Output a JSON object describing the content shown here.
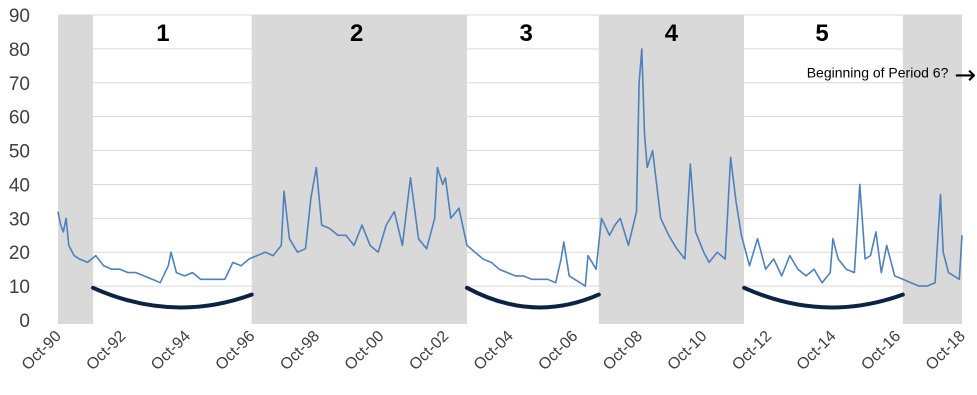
{
  "chart_data": {
    "type": "line",
    "series_color": "#4f81bd",
    "shade_color": "#d9d9d9",
    "curve_color": "#0d2345",
    "ylim": [
      0,
      90
    ],
    "yticks": [
      "0",
      "10",
      "20",
      "30",
      "40",
      "50",
      "60",
      "70",
      "80",
      "90"
    ],
    "xlim": [
      "1990-10",
      "2018-10"
    ],
    "xticks": [
      "Oct-90",
      "Oct-92",
      "Oct-94",
      "Oct-96",
      "Oct-98",
      "Oct-00",
      "Oct-02",
      "Oct-04",
      "Oct-06",
      "Oct-08",
      "Oct-10",
      "Oct-12",
      "Oct-14",
      "Oct-16",
      "Oct-18"
    ],
    "shaded_periods": [
      {
        "start": "1990-10",
        "end": "1991-11"
      },
      {
        "start": "1996-10",
        "end": "2003-06"
      },
      {
        "start": "2007-07",
        "end": "2012-01"
      },
      {
        "start": "2016-12",
        "end": "2018-10"
      }
    ],
    "period_labels": [
      {
        "text": "1",
        "x": "1994-01"
      },
      {
        "text": "2",
        "x": "2000-01"
      },
      {
        "text": "3",
        "x": "2005-04"
      },
      {
        "text": "4",
        "x": "2009-10"
      },
      {
        "text": "5",
        "x": "2014-06"
      }
    ],
    "annotation": {
      "text": "Beginning of Period 6?",
      "x": "2015-06",
      "y": 73,
      "arrow": "→"
    },
    "trough_curves": [
      {
        "start": "1991-11",
        "end": "1996-10"
      },
      {
        "start": "2003-06",
        "end": "2007-07"
      },
      {
        "start": "2012-01",
        "end": "2016-12"
      }
    ],
    "values": [
      {
        "x": "1990-10",
        "y": 32
      },
      {
        "x": "1990-11",
        "y": 28
      },
      {
        "x": "1990-12",
        "y": 26
      },
      {
        "x": "1991-01",
        "y": 30
      },
      {
        "x": "1991-02",
        "y": 22
      },
      {
        "x": "1991-04",
        "y": 19
      },
      {
        "x": "1991-06",
        "y": 18
      },
      {
        "x": "1991-09",
        "y": 17
      },
      {
        "x": "1991-12",
        "y": 19
      },
      {
        "x": "1992-03",
        "y": 16
      },
      {
        "x": "1992-06",
        "y": 15
      },
      {
        "x": "1992-09",
        "y": 15
      },
      {
        "x": "1992-12",
        "y": 14
      },
      {
        "x": "1993-03",
        "y": 14
      },
      {
        "x": "1993-06",
        "y": 13
      },
      {
        "x": "1993-09",
        "y": 12
      },
      {
        "x": "1993-12",
        "y": 11
      },
      {
        "x": "1994-03",
        "y": 16
      },
      {
        "x": "1994-04",
        "y": 20
      },
      {
        "x": "1994-06",
        "y": 14
      },
      {
        "x": "1994-09",
        "y": 13
      },
      {
        "x": "1994-12",
        "y": 14
      },
      {
        "x": "1995-03",
        "y": 12
      },
      {
        "x": "1995-06",
        "y": 12
      },
      {
        "x": "1995-09",
        "y": 12
      },
      {
        "x": "1995-12",
        "y": 12
      },
      {
        "x": "1996-03",
        "y": 17
      },
      {
        "x": "1996-06",
        "y": 16
      },
      {
        "x": "1996-09",
        "y": 18
      },
      {
        "x": "1996-12",
        "y": 19
      },
      {
        "x": "1997-03",
        "y": 20
      },
      {
        "x": "1997-06",
        "y": 19
      },
      {
        "x": "1997-09",
        "y": 22
      },
      {
        "x": "1997-10",
        "y": 38
      },
      {
        "x": "1997-12",
        "y": 24
      },
      {
        "x": "1998-03",
        "y": 20
      },
      {
        "x": "1998-06",
        "y": 21
      },
      {
        "x": "1998-08",
        "y": 36
      },
      {
        "x": "1998-10",
        "y": 45
      },
      {
        "x": "1998-12",
        "y": 28
      },
      {
        "x": "1999-03",
        "y": 27
      },
      {
        "x": "1999-06",
        "y": 25
      },
      {
        "x": "1999-09",
        "y": 25
      },
      {
        "x": "1999-12",
        "y": 22
      },
      {
        "x": "2000-03",
        "y": 28
      },
      {
        "x": "2000-06",
        "y": 22
      },
      {
        "x": "2000-09",
        "y": 20
      },
      {
        "x": "2000-12",
        "y": 28
      },
      {
        "x": "2001-03",
        "y": 32
      },
      {
        "x": "2001-06",
        "y": 22
      },
      {
        "x": "2001-09",
        "y": 42
      },
      {
        "x": "2001-12",
        "y": 24
      },
      {
        "x": "2002-03",
        "y": 21
      },
      {
        "x": "2002-06",
        "y": 30
      },
      {
        "x": "2002-07",
        "y": 45
      },
      {
        "x": "2002-09",
        "y": 40
      },
      {
        "x": "2002-10",
        "y": 42
      },
      {
        "x": "2002-12",
        "y": 30
      },
      {
        "x": "2003-03",
        "y": 33
      },
      {
        "x": "2003-06",
        "y": 22
      },
      {
        "x": "2003-09",
        "y": 20
      },
      {
        "x": "2003-12",
        "y": 18
      },
      {
        "x": "2004-03",
        "y": 17
      },
      {
        "x": "2004-06",
        "y": 15
      },
      {
        "x": "2004-09",
        "y": 14
      },
      {
        "x": "2004-12",
        "y": 13
      },
      {
        "x": "2005-03",
        "y": 13
      },
      {
        "x": "2005-06",
        "y": 12
      },
      {
        "x": "2005-09",
        "y": 12
      },
      {
        "x": "2005-12",
        "y": 12
      },
      {
        "x": "2006-03",
        "y": 11
      },
      {
        "x": "2006-05",
        "y": 18
      },
      {
        "x": "2006-06",
        "y": 23
      },
      {
        "x": "2006-08",
        "y": 13
      },
      {
        "x": "2006-12",
        "y": 11
      },
      {
        "x": "2007-02",
        "y": 10
      },
      {
        "x": "2007-03",
        "y": 19
      },
      {
        "x": "2007-06",
        "y": 15
      },
      {
        "x": "2007-08",
        "y": 30
      },
      {
        "x": "2007-11",
        "y": 25
      },
      {
        "x": "2008-01",
        "y": 28
      },
      {
        "x": "2008-03",
        "y": 30
      },
      {
        "x": "2008-06",
        "y": 22
      },
      {
        "x": "2008-09",
        "y": 32
      },
      {
        "x": "2008-10",
        "y": 70
      },
      {
        "x": "2008-11",
        "y": 80
      },
      {
        "x": "2008-12",
        "y": 55
      },
      {
        "x": "2009-01",
        "y": 45
      },
      {
        "x": "2009-03",
        "y": 50
      },
      {
        "x": "2009-06",
        "y": 30
      },
      {
        "x": "2009-09",
        "y": 25
      },
      {
        "x": "2009-12",
        "y": 21
      },
      {
        "x": "2010-03",
        "y": 18
      },
      {
        "x": "2010-05",
        "y": 46
      },
      {
        "x": "2010-07",
        "y": 26
      },
      {
        "x": "2010-10",
        "y": 20
      },
      {
        "x": "2010-12",
        "y": 17
      },
      {
        "x": "2011-03",
        "y": 20
      },
      {
        "x": "2011-06",
        "y": 18
      },
      {
        "x": "2011-08",
        "y": 48
      },
      {
        "x": "2011-10",
        "y": 35
      },
      {
        "x": "2011-12",
        "y": 25
      },
      {
        "x": "2012-03",
        "y": 16
      },
      {
        "x": "2012-06",
        "y": 24
      },
      {
        "x": "2012-09",
        "y": 15
      },
      {
        "x": "2012-12",
        "y": 18
      },
      {
        "x": "2013-03",
        "y": 13
      },
      {
        "x": "2013-06",
        "y": 19
      },
      {
        "x": "2013-09",
        "y": 15
      },
      {
        "x": "2013-12",
        "y": 13
      },
      {
        "x": "2014-03",
        "y": 15
      },
      {
        "x": "2014-06",
        "y": 11
      },
      {
        "x": "2014-09",
        "y": 14
      },
      {
        "x": "2014-10",
        "y": 24
      },
      {
        "x": "2014-12",
        "y": 18
      },
      {
        "x": "2015-03",
        "y": 15
      },
      {
        "x": "2015-06",
        "y": 14
      },
      {
        "x": "2015-08",
        "y": 40
      },
      {
        "x": "2015-10",
        "y": 18
      },
      {
        "x": "2015-12",
        "y": 19
      },
      {
        "x": "2016-02",
        "y": 26
      },
      {
        "x": "2016-04",
        "y": 14
      },
      {
        "x": "2016-06",
        "y": 22
      },
      {
        "x": "2016-09",
        "y": 13
      },
      {
        "x": "2016-12",
        "y": 12
      },
      {
        "x": "2017-03",
        "y": 11
      },
      {
        "x": "2017-06",
        "y": 10
      },
      {
        "x": "2017-09",
        "y": 10
      },
      {
        "x": "2017-12",
        "y": 11
      },
      {
        "x": "2018-02",
        "y": 37
      },
      {
        "x": "2018-03",
        "y": 20
      },
      {
        "x": "2018-05",
        "y": 14
      },
      {
        "x": "2018-07",
        "y": 13
      },
      {
        "x": "2018-09",
        "y": 12
      },
      {
        "x": "2018-10",
        "y": 25
      }
    ]
  }
}
